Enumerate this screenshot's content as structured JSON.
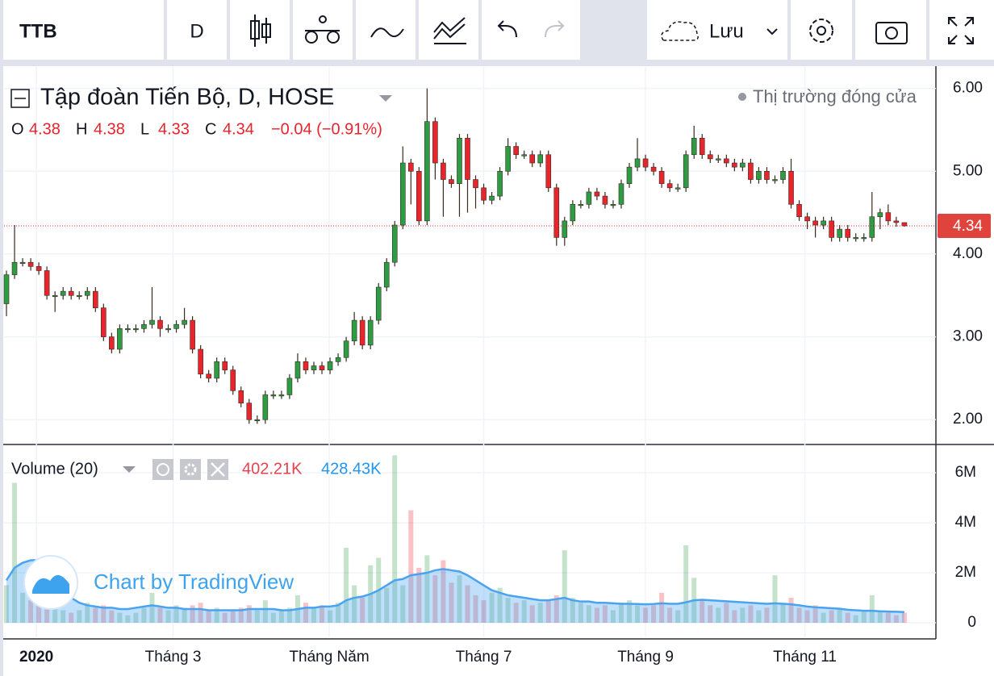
{
  "toolbar": {
    "symbol": "TTB",
    "interval": "D",
    "save": "Lưu"
  },
  "chart_data": {
    "type": "candlestick",
    "title": "Tập đoàn Tiến Bộ, D, HOSE",
    "market_status": "Thị trường đóng cửa",
    "ohlc_legend": [
      {
        "label": "O",
        "value": 4.38
      },
      {
        "label": "H",
        "value": 4.38
      },
      {
        "label": "L",
        "value": 4.33
      },
      {
        "label": "C",
        "value": 4.34
      }
    ],
    "change": "−0.04 (−0.91%)",
    "watermark": "Chart by TradingView",
    "up_color": "#2e9b45",
    "down_color": "#e8242c",
    "ma_color": "#4aa3f0",
    "xlim": [
      -0.3,
      114.9
    ],
    "xticks": [
      {
        "value": 3.7,
        "label": "2020"
      },
      {
        "value": 20.6,
        "label": "Tháng 3"
      },
      {
        "value": 39.9,
        "label": "Tháng Năm"
      },
      {
        "value": 59.0,
        "label": "Tháng 7"
      },
      {
        "value": 79.0,
        "label": "Tháng 9"
      },
      {
        "value": 98.7,
        "label": "Tháng 11"
      }
    ],
    "ylim": [
      1.71,
      6.24
    ],
    "yticks": [
      {
        "value": 2,
        "label": "2.00"
      },
      {
        "value": 3,
        "label": "3.00"
      },
      {
        "value": 4,
        "label": "4.00"
      },
      {
        "value": 5,
        "label": "5.00"
      },
      {
        "value": 6,
        "label": "6.00"
      }
    ],
    "y2lim": [
      -580000,
      7100000
    ],
    "y2ticks": [
      0,
      {
        "value": 2000000,
        "label": "2M"
      },
      {
        "value": 4000000,
        "label": "4M"
      },
      {
        "value": 6000000,
        "label": "6M"
      }
    ],
    "last_price": {
      "value": 4.34,
      "label": "4.34"
    },
    "open": [
      3.4,
      3.75,
      3.9,
      3.9,
      3.85,
      3.8,
      3.5,
      3.5,
      3.55,
      3.5,
      3.5,
      3.55,
      3.35,
      3.0,
      2.85,
      3.1,
      3.1,
      3.1,
      3.15,
      3.2,
      3.1,
      3.1,
      3.15,
      3.2,
      2.85,
      2.55,
      2.5,
      2.7,
      2.6,
      2.35,
      2.2,
      2.0,
      2.0,
      2.3,
      2.3,
      2.3,
      2.5,
      2.7,
      2.6,
      2.65,
      2.6,
      2.7,
      2.75,
      2.95,
      3.2,
      2.9,
      3.2,
      3.6,
      3.9,
      4.35,
      5.1,
      5.0,
      4.4,
      5.6,
      5.1,
      4.9,
      4.85,
      5.4,
      4.9,
      4.8,
      4.65,
      4.7,
      5.0,
      5.3,
      5.2,
      5.2,
      5.1,
      5.2,
      4.8,
      4.2,
      4.4,
      4.6,
      4.6,
      4.75,
      4.7,
      4.6,
      4.6,
      4.85,
      5.05,
      5.15,
      5.05,
      5.0,
      4.85,
      4.8,
      4.8,
      5.2,
      5.4,
      5.2,
      5.15,
      5.15,
      5.1,
      5.05,
      5.1,
      4.9,
      5.0,
      4.9,
      4.9,
      5.0,
      4.6,
      4.45,
      4.4,
      4.35,
      4.4,
      4.2,
      4.3,
      4.2,
      4.2,
      4.2,
      4.45,
      4.5,
      4.4,
      4.38
    ],
    "high": [
      3.8,
      4.35,
      3.95,
      3.95,
      3.9,
      3.85,
      3.55,
      3.6,
      3.6,
      3.55,
      3.6,
      3.6,
      3.4,
      3.05,
      3.15,
      3.15,
      3.15,
      3.2,
      3.6,
      3.25,
      3.15,
      3.2,
      3.35,
      3.25,
      2.9,
      2.6,
      2.75,
      2.75,
      2.65,
      2.4,
      2.25,
      2.05,
      2.35,
      2.35,
      2.35,
      2.55,
      2.8,
      2.75,
      2.7,
      2.7,
      2.75,
      2.8,
      3.0,
      3.3,
      3.25,
      3.25,
      3.65,
      3.95,
      4.4,
      5.3,
      5.15,
      5.05,
      6.0,
      5.65,
      5.15,
      4.95,
      5.45,
      5.45,
      4.95,
      4.85,
      4.75,
      5.05,
      5.4,
      5.35,
      5.25,
      5.25,
      5.25,
      5.25,
      4.85,
      4.45,
      4.65,
      4.65,
      4.8,
      4.8,
      4.75,
      4.65,
      4.9,
      5.1,
      5.4,
      5.2,
      5.1,
      5.05,
      4.9,
      4.85,
      5.25,
      5.55,
      5.45,
      5.25,
      5.2,
      5.2,
      5.15,
      5.15,
      5.15,
      5.05,
      5.05,
      4.95,
      5.05,
      5.15,
      4.65,
      4.5,
      4.45,
      4.45,
      4.45,
      4.35,
      4.35,
      4.25,
      4.25,
      4.75,
      4.55,
      4.6,
      4.45,
      4.38
    ],
    "low": [
      3.25,
      3.7,
      3.85,
      3.8,
      3.75,
      3.45,
      3.3,
      3.45,
      3.45,
      3.45,
      3.45,
      3.3,
      2.95,
      2.8,
      2.8,
      3.05,
      3.05,
      3.05,
      3.1,
      3.0,
      3.05,
      3.05,
      3.1,
      2.8,
      2.5,
      2.45,
      2.45,
      2.55,
      2.3,
      2.15,
      1.95,
      1.95,
      1.95,
      2.25,
      2.25,
      2.25,
      2.45,
      2.55,
      2.55,
      2.55,
      2.55,
      2.65,
      2.7,
      2.9,
      2.85,
      2.85,
      3.15,
      3.55,
      3.85,
      4.3,
      4.6,
      4.35,
      4.35,
      4.9,
      4.45,
      4.8,
      4.45,
      4.5,
      4.55,
      4.6,
      4.6,
      4.65,
      4.95,
      5.15,
      5.15,
      5.05,
      5.05,
      4.75,
      4.1,
      4.1,
      4.35,
      4.55,
      4.55,
      4.65,
      4.55,
      4.55,
      4.55,
      4.8,
      5.0,
      5.0,
      4.95,
      4.8,
      4.75,
      4.75,
      4.75,
      5.15,
      5.15,
      5.1,
      5.1,
      5.05,
      5.0,
      5.0,
      4.85,
      4.85,
      4.85,
      4.85,
      4.85,
      4.55,
      4.4,
      4.3,
      4.2,
      4.3,
      4.15,
      4.15,
      4.15,
      4.15,
      4.15,
      4.15,
      4.3,
      4.35,
      4.33,
      4.33
    ],
    "close": [
      3.75,
      3.9,
      3.9,
      3.85,
      3.8,
      3.5,
      3.5,
      3.55,
      3.5,
      3.5,
      3.55,
      3.35,
      3.0,
      2.85,
      3.1,
      3.1,
      3.1,
      3.15,
      3.2,
      3.1,
      3.1,
      3.15,
      3.2,
      2.85,
      2.55,
      2.5,
      2.7,
      2.6,
      2.35,
      2.2,
      2.0,
      2.0,
      2.3,
      2.3,
      2.3,
      2.5,
      2.7,
      2.6,
      2.65,
      2.6,
      2.7,
      2.75,
      2.95,
      3.2,
      2.9,
      3.2,
      3.6,
      3.9,
      4.35,
      5.1,
      5.0,
      4.4,
      5.6,
      5.1,
      4.9,
      4.85,
      5.4,
      4.9,
      4.8,
      4.65,
      4.7,
      5.0,
      5.3,
      5.2,
      5.2,
      5.1,
      5.2,
      4.8,
      4.2,
      4.4,
      4.6,
      4.6,
      4.75,
      4.7,
      4.6,
      4.6,
      4.85,
      5.05,
      5.15,
      5.05,
      5.0,
      4.85,
      4.8,
      4.8,
      5.2,
      5.4,
      5.2,
      5.15,
      5.15,
      5.1,
      5.05,
      5.1,
      4.9,
      5.0,
      4.9,
      4.9,
      5.0,
      4.6,
      4.45,
      4.4,
      4.35,
      4.4,
      4.2,
      4.3,
      4.2,
      4.2,
      4.2,
      4.45,
      4.5,
      4.4,
      4.38,
      4.34
    ],
    "volume_legend": {
      "name": "Volume (20)",
      "value_label": "402.21K",
      "ma_label": "428.43K"
    },
    "volume": [
      1500000,
      5600000,
      1200000,
      900000,
      700000,
      800000,
      600000,
      500000,
      400000,
      500000,
      800000,
      600000,
      700000,
      500000,
      400000,
      300000,
      400000,
      600000,
      1200000,
      600000,
      500000,
      700000,
      600000,
      700000,
      800000,
      500000,
      600000,
      400000,
      500000,
      600000,
      700000,
      500000,
      900000,
      400000,
      500000,
      600000,
      1100000,
      800000,
      600000,
      700000,
      500000,
      800000,
      3000000,
      1500000,
      1000000,
      2300000,
      2600000,
      1400000,
      6700000,
      1500000,
      4500000,
      2200000,
      2700000,
      1900000,
      2500000,
      1600000,
      1900000,
      1500000,
      1100000,
      900000,
      1200000,
      1400000,
      1000000,
      800000,
      900000,
      700000,
      800000,
      900000,
      1100000,
      2900000,
      1000000,
      800000,
      700000,
      600000,
      700000,
      500000,
      800000,
      900000,
      700000,
      600000,
      700000,
      1200000,
      600000,
      500000,
      3100000,
      1800000,
      900000,
      700000,
      600000,
      800000,
      500000,
      600000,
      700000,
      500000,
      600000,
      1900000,
      800000,
      1000000,
      600000,
      500000,
      700000,
      400000,
      500000,
      600000,
      400000,
      300000,
      500000,
      1100000,
      500000,
      400000,
      300000,
      402210
    ],
    "volume_ma": [
      1700000,
      2200000,
      2400000,
      2500000,
      2500000,
      2400000,
      2000000,
      1500000,
      1000000,
      800000,
      700000,
      650000,
      600000,
      600000,
      550000,
      550000,
      600000,
      650000,
      700000,
      650000,
      600000,
      600000,
      550000,
      550000,
      550000,
      500000,
      500000,
      500000,
      500000,
      500000,
      550000,
      550000,
      550000,
      550000,
      500000,
      500000,
      550000,
      600000,
      600000,
      650000,
      650000,
      700000,
      900000,
      1000000,
      1050000,
      1150000,
      1300000,
      1500000,
      1700000,
      1750000,
      1900000,
      1950000,
      2000000,
      2100000,
      2150000,
      2100000,
      2050000,
      1900000,
      1700000,
      1500000,
      1300000,
      1200000,
      1100000,
      1050000,
      1000000,
      950000,
      900000,
      900000,
      950000,
      1000000,
      900000,
      850000,
      850000,
      800000,
      800000,
      780000,
      760000,
      760000,
      750000,
      740000,
      750000,
      780000,
      760000,
      760000,
      820000,
      900000,
      920000,
      900000,
      880000,
      860000,
      840000,
      820000,
      800000,
      780000,
      760000,
      780000,
      760000,
      740000,
      700000,
      650000,
      620000,
      600000,
      580000,
      560000,
      520000,
      500000,
      480000,
      480000,
      460000,
      450000,
      440000,
      428430
    ]
  }
}
